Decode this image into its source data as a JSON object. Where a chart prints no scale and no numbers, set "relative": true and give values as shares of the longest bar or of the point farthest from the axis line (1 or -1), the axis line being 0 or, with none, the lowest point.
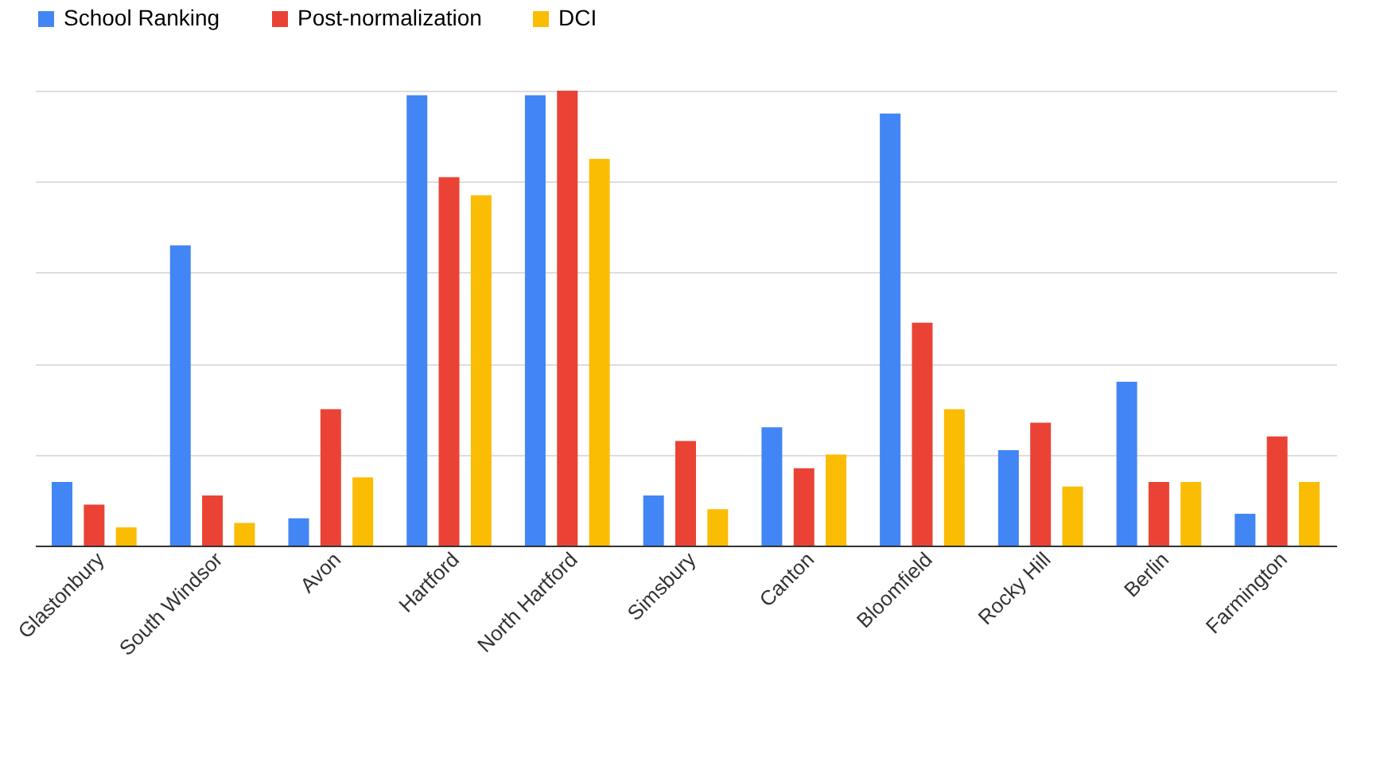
{
  "chart_data": {
    "type": "bar",
    "relative": true,
    "grid": "y",
    "legend": "top",
    "categories": [
      "Glastonbury",
      "South Windsor",
      "Avon",
      "Hartford",
      "North Hartford",
      "Simsbury",
      "Canton",
      "Bloomfield",
      "Rocky Hill",
      "Berlin",
      "Farmington"
    ],
    "series": [
      {
        "name": "School Ranking",
        "color": "#4285f4",
        "values": [
          0.14,
          0.66,
          0.06,
          0.99,
          0.99,
          0.11,
          0.26,
          0.95,
          0.21,
          0.36,
          0.07
        ]
      },
      {
        "name": "Post-normalization",
        "color": "#ea4335",
        "values": [
          0.09,
          0.11,
          0.3,
          0.81,
          1,
          0.23,
          0.17,
          0.49,
          0.27,
          0.14,
          0.24
        ]
      },
      {
        "name": "DCI",
        "color": "#fbbc04",
        "values": [
          0.04,
          0.05,
          0.15,
          0.77,
          0.85,
          0.08,
          0.2,
          0.3,
          0.13,
          0.14,
          0.14
        ]
      }
    ]
  }
}
